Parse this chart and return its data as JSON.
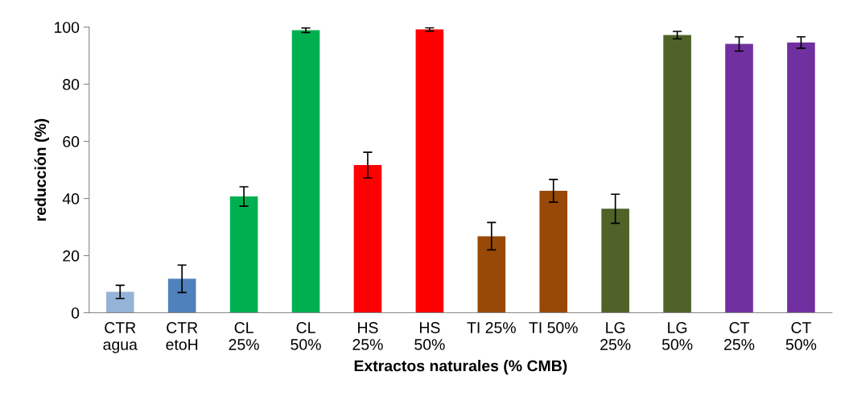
{
  "chart_data": {
    "type": "bar",
    "xlabel": "Extractos naturales (% CMB)",
    "ylabel": "reducción (%)",
    "categories": [
      "CTR\nagua",
      "CTR\netoH",
      "CL\n25%",
      "CL\n50%",
      "HS\n25%",
      "HS\n50%",
      "TI 25%",
      "TI 50%",
      "LG\n25%",
      "LG\n50%",
      "CT\n25%",
      "CT\n50%"
    ],
    "values": [
      7.3,
      11.9,
      40.7,
      98.9,
      51.7,
      99.2,
      26.8,
      42.7,
      36.4,
      97.2,
      94.1,
      94.6
    ],
    "errors": [
      2.3,
      4.8,
      3.4,
      0.8,
      4.5,
      0.6,
      4.8,
      4.0,
      5.1,
      1.3,
      2.5,
      2.0
    ],
    "colors": [
      "#95b3d7",
      "#4f81bd",
      "#00b050",
      "#00b050",
      "#ff0000",
      "#ff0000",
      "#984807",
      "#984807",
      "#4f6228",
      "#4f6228",
      "#7030a0",
      "#7030a0"
    ],
    "ylim": [
      0,
      100
    ],
    "yticks": [
      0,
      20,
      40,
      60,
      80,
      100
    ],
    "grid": false,
    "legend": false
  }
}
